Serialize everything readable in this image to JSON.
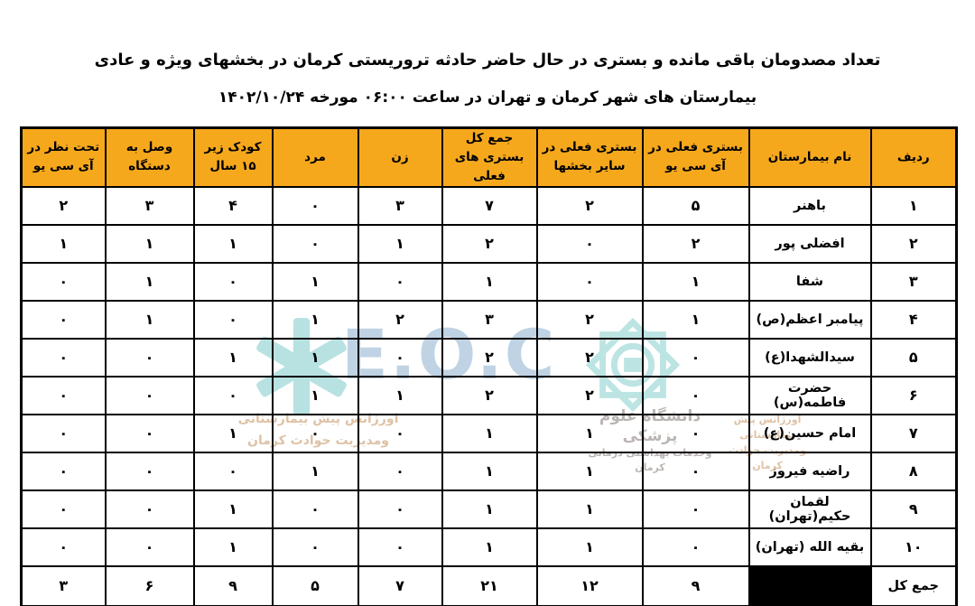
{
  "title": {
    "line1": "تعداد مصدومان باقی مانده و بستری در حال حاضر حادثه تروریستی کرمان در بخشهای ویژه و عادی",
    "line2": "بیمارستان های شهر کرمان و تهران در ساعت ۰۶:۰۰ مورخه ۱۴۰۲/۱۰/۲۴"
  },
  "table": {
    "headers": [
      "ردیف",
      "نام بیمارستان",
      "بستری فعلی در آی سی یو",
      "بستری فعلی در سایر بخشها",
      "جمع کل بستری های فعلی",
      "زن",
      "مرد",
      "کودک زیر ۱۵ سال",
      "وصل به دستگاه",
      "تحت نظر در آی سی یو"
    ],
    "rows": [
      [
        "۱",
        "باهنر",
        "۵",
        "۲",
        "۷",
        "۳",
        "۰",
        "۴",
        "۳",
        "۲"
      ],
      [
        "۲",
        "افضلی پور",
        "۲",
        "۰",
        "۲",
        "۱",
        "۰",
        "۱",
        "۱",
        "۱"
      ],
      [
        "۳",
        "شفا",
        "۱",
        "۰",
        "۱",
        "۰",
        "۱",
        "۰",
        "۱",
        "۰"
      ],
      [
        "۴",
        "پیامبر اعظم(ص)",
        "۱",
        "۲",
        "۳",
        "۲",
        "۱",
        "۰",
        "۱",
        "۰"
      ],
      [
        "۵",
        "سیدالشهدا(ع)",
        "۰",
        "۲",
        "۲",
        "۰",
        "۱",
        "۱",
        "۰",
        "۰"
      ],
      [
        "۶",
        "حضرت فاطمه(س)",
        "۰",
        "۲",
        "۲",
        "۱",
        "۱",
        "۰",
        "۰",
        "۰"
      ],
      [
        "۷",
        "امام حسین(ع)",
        "۰",
        "۱",
        "۱",
        "۰",
        "۰",
        "۱",
        "۰",
        "۰"
      ],
      [
        "۸",
        "راضیه فیروز",
        "۰",
        "۱",
        "۱",
        "۰",
        "۱",
        "۰",
        "۰",
        "۰"
      ],
      [
        "۹",
        "لقمان حکیم(تهران)",
        "۰",
        "۱",
        "۱",
        "۰",
        "۰",
        "۱",
        "۰",
        "۰"
      ],
      [
        "۱۰",
        "بقیه الله (تهران)",
        "۰",
        "۱",
        "۱",
        "۰",
        "۰",
        "۱",
        "۰",
        "۰"
      ]
    ],
    "total_row": {
      "label": "جمع کل",
      "name_cell_redacted": true,
      "values": [
        "۹",
        "۱۲",
        "۲۱",
        "۷",
        "۵",
        "۹",
        "۶",
        "۳"
      ]
    }
  },
  "watermark": {
    "eoc": "E.O.C",
    "star_icon": "star-of-life",
    "emblem_icon": "university-emblem",
    "university_line1": "دانشگاه علوم پزشکی",
    "university_line2": "وخدمات بهداشتی درمانی کرمان",
    "ems_line1": "اورژانس پیش بیمارستانی",
    "ems_line2": "ومدیریت حوادث کرمان"
  },
  "colors": {
    "header_bg": "#f6a81c",
    "border": "#000000",
    "text": "#000000",
    "redacted_bg": "#000000",
    "watermark_teal": "#a6dcda",
    "watermark_blue": "#b9cfe2",
    "watermark_gray": "#b3aeab",
    "watermark_tan": "#d9b896"
  }
}
